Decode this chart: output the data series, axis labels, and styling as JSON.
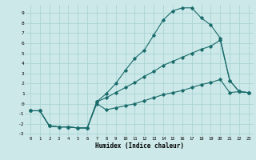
{
  "xlabel": "Humidex (Indice chaleur)",
  "bg_color": "#cce8e8",
  "grid_color": "#aad4d4",
  "line_color": "#1a6b6b",
  "xlim": [
    -0.5,
    23.5
  ],
  "ylim": [
    -3.2,
    9.8
  ],
  "xticks": [
    0,
    1,
    2,
    3,
    4,
    5,
    6,
    7,
    8,
    9,
    10,
    11,
    12,
    13,
    14,
    15,
    16,
    17,
    18,
    19,
    20,
    21,
    22,
    23
  ],
  "yticks": [
    -3,
    -2,
    -1,
    0,
    1,
    2,
    3,
    4,
    5,
    6,
    7,
    8,
    9
  ],
  "series1_x": [
    0,
    1,
    2,
    3,
    4,
    5,
    6,
    7,
    8,
    9,
    10,
    11,
    12,
    13,
    14,
    15,
    16,
    17,
    18,
    19,
    20,
    21,
    22,
    23
  ],
  "series1_y": [
    -0.7,
    -0.7,
    -2.2,
    -2.3,
    -2.3,
    -2.4,
    -2.4,
    0.2,
    1.0,
    2.0,
    3.3,
    4.5,
    5.3,
    6.8,
    8.3,
    9.2,
    9.5,
    9.5,
    8.5,
    7.8,
    6.5,
    2.3,
    1.2,
    1.1
  ],
  "series2_x": [
    0,
    1,
    2,
    3,
    4,
    5,
    6,
    7,
    8,
    9,
    10,
    11,
    12,
    13,
    14,
    15,
    16,
    17,
    18,
    19,
    20,
    21,
    22,
    23
  ],
  "series2_y": [
    -0.7,
    -0.7,
    -2.2,
    -2.3,
    -2.3,
    -2.4,
    -2.4,
    0.2,
    0.6,
    1.1,
    1.6,
    2.1,
    2.7,
    3.2,
    3.8,
    4.2,
    4.6,
    5.0,
    5.4,
    5.7,
    6.3,
    2.3,
    1.2,
    1.1
  ],
  "series3_x": [
    0,
    1,
    2,
    3,
    4,
    5,
    6,
    7,
    8,
    9,
    10,
    11,
    12,
    13,
    14,
    15,
    16,
    17,
    18,
    19,
    20,
    21,
    22,
    23
  ],
  "series3_y": [
    -0.7,
    -0.7,
    -2.2,
    -2.3,
    -2.3,
    -2.4,
    -2.4,
    0.0,
    -0.6,
    -0.4,
    -0.2,
    0.0,
    0.3,
    0.6,
    0.9,
    1.1,
    1.3,
    1.6,
    1.9,
    2.1,
    2.4,
    1.1,
    1.2,
    1.1
  ]
}
